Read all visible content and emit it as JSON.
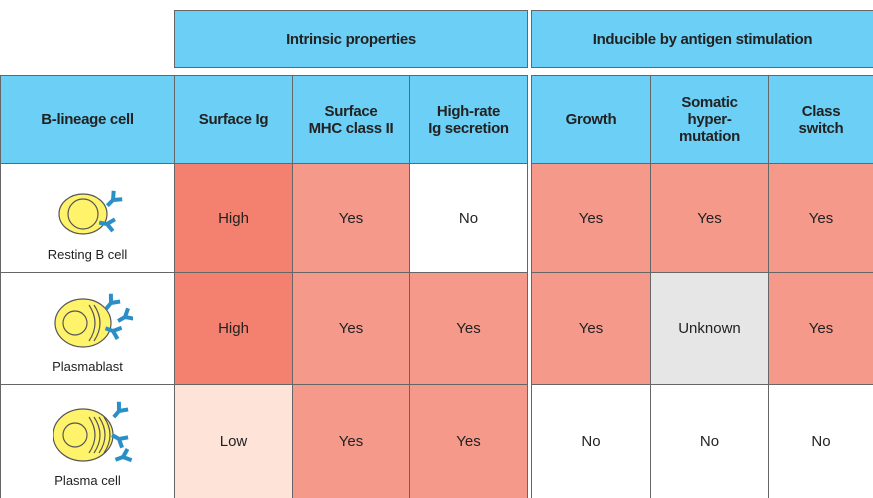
{
  "groups": [
    {
      "label": "Intrinsic properties"
    },
    {
      "label": "Inducible by antigen stimulation"
    }
  ],
  "columns": [
    "B-lineage cell",
    "Surface Ig",
    "Surface\nMHC class II",
    "High-rate\nIg secretion",
    "Growth",
    "Somatic\nhyper-\nmutation",
    "Class\nswitch"
  ],
  "rows": [
    {
      "cell": "Resting B cell",
      "values": [
        {
          "text": "High",
          "color": "#f4806f"
        },
        {
          "text": "Yes",
          "color": "#f59a8b"
        },
        {
          "text": "No",
          "color": "#ffffff"
        },
        {
          "text": "Yes",
          "color": "#f59a8b"
        },
        {
          "text": "Yes",
          "color": "#f59a8b"
        },
        {
          "text": "Yes",
          "color": "#f59a8b"
        }
      ]
    },
    {
      "cell": "Plasmablast",
      "values": [
        {
          "text": "High",
          "color": "#f4806f"
        },
        {
          "text": "Yes",
          "color": "#f59a8b"
        },
        {
          "text": "Yes",
          "color": "#f59a8b"
        },
        {
          "text": "Yes",
          "color": "#f59a8b"
        },
        {
          "text": "Unknown",
          "color": "#e6e6e6"
        },
        {
          "text": "Yes",
          "color": "#f59a8b"
        }
      ]
    },
    {
      "cell": "Plasma cell",
      "values": [
        {
          "text": "Low",
          "color": "#fde3d8"
        },
        {
          "text": "Yes",
          "color": "#f59a8b"
        },
        {
          "text": "Yes",
          "color": "#f59a8b"
        },
        {
          "text": "No",
          "color": "#ffffff"
        },
        {
          "text": "No",
          "color": "#ffffff"
        },
        {
          "text": "No",
          "color": "#ffffff"
        }
      ]
    }
  ]
}
